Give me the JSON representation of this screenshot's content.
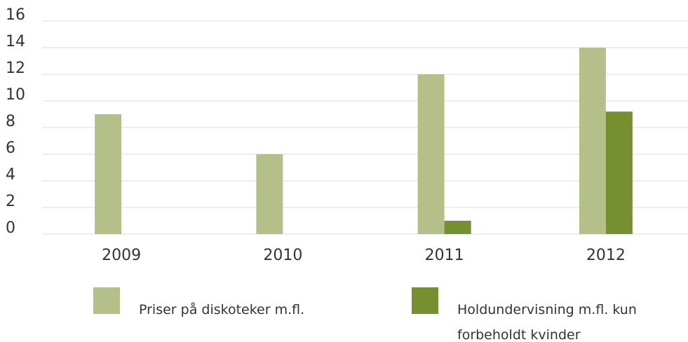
{
  "chart_data": {
    "type": "bar",
    "categories": [
      "2009",
      "2010",
      "2011",
      "2012"
    ],
    "series": [
      {
        "name": "Priser på diskoteker m.fl.",
        "color": "#b5bf8a",
        "values": [
          9,
          6,
          12,
          14
        ]
      },
      {
        "name": "Holdundervisning m.fl. kun forbeholdt kvinder",
        "color": "#768f31",
        "values": [
          0,
          0,
          1,
          9.2
        ]
      }
    ],
    "ylim": [
      0,
      16
    ],
    "yticks": [
      0,
      2,
      4,
      6,
      8,
      10,
      12,
      14,
      16
    ],
    "grid": true,
    "legend": "bottom"
  }
}
